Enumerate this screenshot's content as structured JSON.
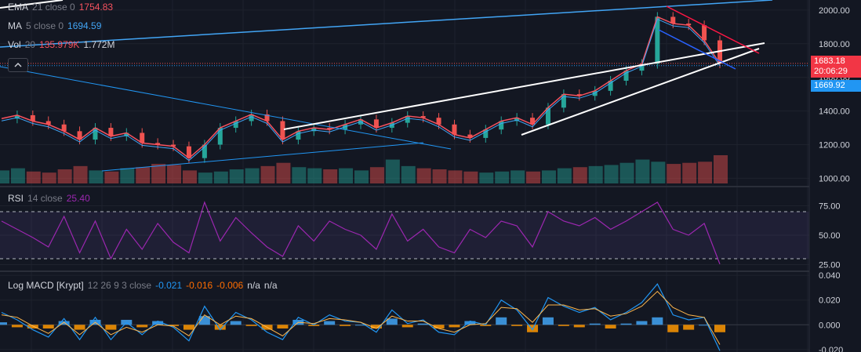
{
  "legend": {
    "ema": {
      "label": "EMA",
      "params": "21 close 0",
      "value": "1754.83",
      "value_color": "#f7525f"
    },
    "ma": {
      "label": "MA",
      "params": "5 close 0",
      "value": "1694.59",
      "value_color": "#2962ff"
    },
    "vol": {
      "label": "Vol",
      "params": "20",
      "value1": "135.979K",
      "value2": "1.772M",
      "value1_color": "#f7525f"
    },
    "rsi": {
      "label": "RSI",
      "params": "14 close",
      "value": "25.40",
      "value_color": "#9c27b0"
    },
    "macd": {
      "label": "Log MACD [Krypt]",
      "params": "12 26 9 3 close",
      "v1": "-0.021",
      "v2": "-0.016",
      "v3": "-0.006",
      "na1": "n/a",
      "na2": "n/a"
    }
  },
  "price_tags": {
    "current": "1683.18",
    "countdown": "20:06:29",
    "ma_value": "1669.92"
  },
  "icons": {
    "collapse": "chevron-up-icon"
  },
  "colors": {
    "background": "#131722",
    "grid": "#1e222d",
    "candle_up": "#26a69a",
    "candle_down": "#ef5350",
    "ema": "#f7525f",
    "ma": "#2962ff",
    "rsi": "#9c27b0",
    "macd": "#2196f3",
    "signal": "#ff6d00",
    "trendline": "#ffffff",
    "trendline_blue": "#2962ff",
    "trendline_red": "#ff1744"
  },
  "chart_data": [
    {
      "type": "line",
      "pane": "price",
      "ylim": [
        960,
        2060
      ],
      "yticks": [
        "2000.00",
        "1800.00",
        "1600.00",
        "1400.00",
        "1200.00",
        "1000.00"
      ],
      "ytick_values": [
        2000,
        1800,
        1600,
        1400,
        1200,
        1000
      ],
      "current_price": 1683.18,
      "ma_price": 1669.92,
      "x": [
        0,
        20,
        40,
        60,
        80,
        100,
        120,
        140,
        160,
        180,
        200,
        220,
        240,
        260,
        280,
        300,
        320,
        340,
        360,
        380,
        400,
        420,
        440,
        460,
        480,
        500,
        520,
        540,
        560,
        580,
        600,
        620,
        640,
        660,
        680,
        700,
        720,
        740,
        760,
        780,
        800,
        820,
        840,
        860,
        880,
        900,
        920
      ],
      "series": [
        {
          "values": [
            1355,
            1375,
            1340,
            1320,
            1280,
            1230,
            1300,
            1250,
            1270,
            1210,
            1200,
            1190,
            1120,
            1200,
            1300,
            1340,
            1380,
            1340,
            1230,
            1280,
            1300,
            1290,
            1320,
            1350,
            1300,
            1330,
            1370,
            1360,
            1320,
            1260,
            1240,
            1290,
            1340,
            1360,
            1320,
            1420,
            1500,
            1490,
            1520,
            1580,
            1640,
            1680,
            1960,
            1920,
            1910,
            1820,
            1683
          ]
        }
      ],
      "volume": [
        60,
        70,
        55,
        50,
        65,
        80,
        60,
        55,
        70,
        75,
        90,
        85,
        60,
        50,
        55,
        65,
        70,
        80,
        95,
        75,
        70,
        65,
        70,
        60,
        75,
        110,
        80,
        70,
        65,
        60,
        55,
        50,
        55,
        60,
        55,
        60,
        70,
        75,
        80,
        85,
        95,
        110,
        100,
        90,
        95,
        100,
        130
      ]
    },
    {
      "type": "line",
      "pane": "rsi",
      "ylim": [
        20,
        90
      ],
      "yticks": [
        "75.00",
        "50.00",
        "25.00"
      ],
      "ytick_values": [
        75,
        50,
        25
      ],
      "bands": [
        70,
        30
      ],
      "x": [
        0,
        20,
        40,
        60,
        80,
        100,
        120,
        140,
        160,
        180,
        200,
        220,
        240,
        260,
        280,
        300,
        320,
        340,
        360,
        380,
        400,
        420,
        440,
        460,
        480,
        500,
        520,
        540,
        560,
        580,
        600,
        620,
        640,
        660,
        680,
        700,
        720,
        740,
        760,
        780,
        800,
        820,
        840,
        860,
        880,
        900,
        920
      ],
      "series": [
        {
          "name": "RSI",
          "values": [
            62,
            55,
            48,
            40,
            66,
            35,
            62,
            30,
            55,
            38,
            60,
            44,
            35,
            78,
            45,
            65,
            52,
            40,
            32,
            58,
            45,
            62,
            55,
            50,
            38,
            68,
            45,
            55,
            40,
            35,
            55,
            48,
            62,
            58,
            40,
            70,
            62,
            58,
            65,
            55,
            62,
            70,
            78,
            55,
            50,
            60,
            25.4
          ]
        }
      ]
    },
    {
      "type": "line",
      "pane": "macd",
      "ylim": [
        -0.022,
        0.042
      ],
      "yticks": [
        "0.040",
        "0.020",
        "0.000",
        "-0.020"
      ],
      "ytick_values": [
        0.04,
        0.02,
        0,
        -0.02
      ],
      "x": [
        0,
        20,
        40,
        60,
        80,
        100,
        120,
        140,
        160,
        180,
        200,
        220,
        240,
        260,
        280,
        300,
        320,
        340,
        360,
        380,
        400,
        420,
        440,
        460,
        480,
        500,
        520,
        540,
        560,
        580,
        600,
        620,
        640,
        660,
        680,
        700,
        720,
        740,
        760,
        780,
        800,
        820,
        840,
        860,
        880,
        900,
        920
      ],
      "series": [
        {
          "name": "MACD",
          "values": [
            0.01,
            0.004,
            -0.004,
            -0.01,
            0.005,
            -0.012,
            0.006,
            -0.012,
            0.002,
            -0.008,
            0.003,
            -0.002,
            -0.013,
            0.015,
            -0.004,
            0.01,
            0.004,
            -0.006,
            -0.012,
            0.006,
            0.0,
            0.008,
            0.003,
            0.002,
            -0.006,
            0.012,
            0.001,
            0.004,
            -0.006,
            -0.008,
            0.003,
            0.0,
            0.02,
            0.012,
            -0.004,
            0.022,
            0.015,
            0.01,
            0.014,
            0.004,
            0.01,
            0.018,
            0.033,
            0.008,
            0.004,
            0.006,
            -0.021
          ]
        },
        {
          "name": "Signal",
          "values": [
            0.008,
            0.006,
            -0.001,
            -0.007,
            0.002,
            -0.008,
            0.002,
            -0.008,
            -0.002,
            -0.006,
            0.0,
            -0.001,
            -0.009,
            0.008,
            0.0,
            0.007,
            0.005,
            -0.002,
            -0.009,
            0.002,
            0.001,
            0.005,
            0.004,
            0.002,
            -0.003,
            0.007,
            0.003,
            0.003,
            -0.003,
            -0.006,
            0.0,
            0.001,
            0.014,
            0.013,
            0.002,
            0.016,
            0.016,
            0.012,
            0.013,
            0.007,
            0.009,
            0.015,
            0.027,
            0.014,
            0.008,
            0.006,
            -0.016
          ]
        },
        {
          "name": "Histogram",
          "values": [
            0.002,
            -0.002,
            -0.003,
            -0.003,
            0.003,
            -0.004,
            0.004,
            -0.004,
            0.004,
            -0.002,
            0.003,
            -0.001,
            -0.004,
            0.007,
            -0.004,
            0.003,
            -0.001,
            -0.004,
            -0.003,
            0.004,
            -0.001,
            0.003,
            -0.001,
            0.0,
            -0.003,
            0.005,
            -0.002,
            0.001,
            -0.003,
            -0.002,
            0.003,
            -0.001,
            0.006,
            -0.001,
            -0.006,
            0.006,
            -0.001,
            -0.002,
            0.001,
            -0.003,
            0.001,
            0.003,
            0.006,
            -0.006,
            -0.004,
            0.0,
            -0.006
          ]
        }
      ]
    }
  ]
}
